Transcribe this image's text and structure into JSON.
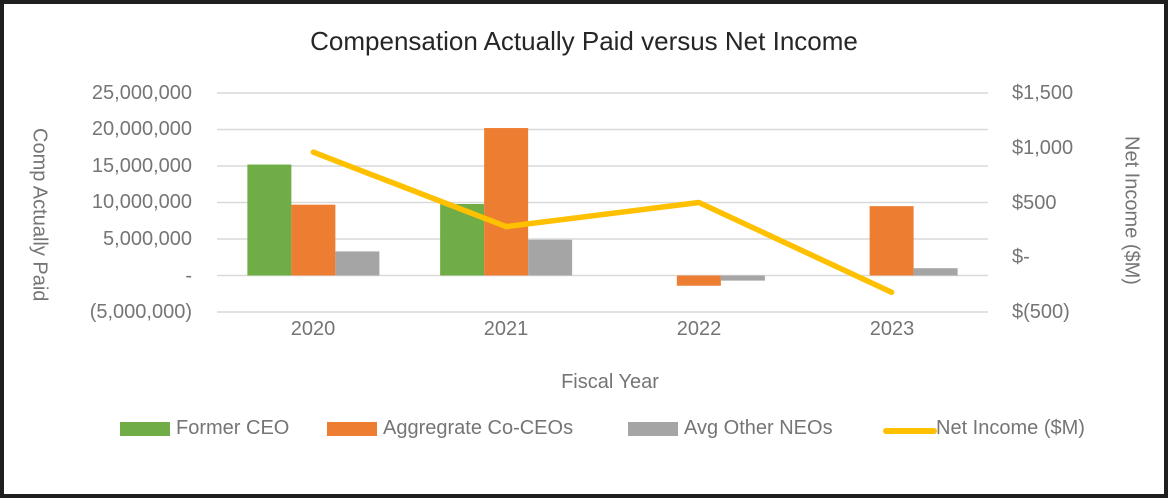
{
  "title": "Compensation Actually Paid versus Net Income",
  "axes": {
    "left_title": "Comp Actually Paid",
    "right_title": "Net Income ($M)",
    "x_title": "Fiscal Year",
    "left_ticks": [
      "25,000,000",
      "20,000,000",
      "15,000,000",
      "10,000,000",
      "5,000,000",
      "-",
      "(5,000,000)"
    ],
    "right_ticks": [
      "$1,500",
      "$1,000",
      "$500",
      "$-",
      "$(500)"
    ]
  },
  "legend": [
    {
      "label": "Former CEO",
      "color": "#70AD47",
      "type": "bar"
    },
    {
      "label": "Aggregrate Co-CEOs",
      "color": "#ED7D31",
      "type": "bar"
    },
    {
      "label": "Avg Other NEOs",
      "color": "#A5A5A5",
      "type": "bar"
    },
    {
      "label": "Net Income ($M)",
      "color": "#FFC000",
      "type": "line"
    }
  ],
  "colors": {
    "green": "#70AD47",
    "orange": "#ED7D31",
    "gray": "#A5A5A5",
    "yellow": "#FFC000",
    "gridline": "#D9D9D9",
    "axis_text": "#757575",
    "title_text": "#262626",
    "border": "#1F1F1F"
  },
  "chart_data": {
    "type": "combo-bar-line",
    "title": "Compensation Actually Paid versus Net Income",
    "xlabel": "Fiscal Year",
    "categories": [
      "2020",
      "2021",
      "2022",
      "2023"
    ],
    "bar_series": [
      {
        "name": "Former CEO",
        "color": "#70AD47",
        "axis": "left",
        "values": [
          15200000,
          9800000,
          0,
          0
        ]
      },
      {
        "name": "Aggregrate Co-CEOs",
        "color": "#ED7D31",
        "axis": "left",
        "values": [
          9700000,
          20200000,
          -1400000,
          9500000
        ]
      },
      {
        "name": "Avg Other NEOs",
        "color": "#A5A5A5",
        "axis": "left",
        "values": [
          3300000,
          4900000,
          -700000,
          1000000
        ]
      }
    ],
    "line_series": {
      "name": "Net Income ($M)",
      "color": "#FFC000",
      "axis": "right",
      "values": [
        960,
        280,
        500,
        -320
      ]
    },
    "left_axis": {
      "label": "Comp Actually Paid",
      "min": -5000000,
      "max": 25000000,
      "step": 5000000
    },
    "right_axis": {
      "label": "Net Income ($M)",
      "min": -500,
      "max": 1500,
      "step": 500
    },
    "grid": true,
    "legend_position": "bottom"
  }
}
